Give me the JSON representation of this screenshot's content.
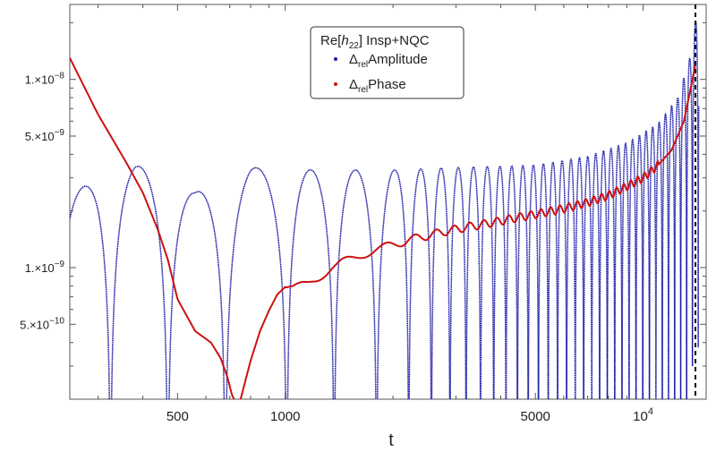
{
  "chart_data": {
    "type": "line",
    "title": "",
    "xlabel": "t",
    "ylabel": "",
    "x_scale": "log",
    "y_scale": "log",
    "xlim": [
      250,
      15000
    ],
    "ylim": [
      2e-10,
      2.5e-08
    ],
    "x_ticks": [
      {
        "value": 500,
        "label": "500"
      },
      {
        "value": 1000,
        "label": "1000"
      },
      {
        "value": 5000,
        "label": "5000"
      },
      {
        "value": 10000,
        "label": "10",
        "exp": "4"
      }
    ],
    "y_ticks": [
      {
        "value": 1e-08,
        "label": "1.×10",
        "exp": "−8"
      },
      {
        "value": 5e-09,
        "label": "5.×10",
        "exp": "−9"
      },
      {
        "value": 1e-09,
        "label": "1.×10",
        "exp": "−9"
      },
      {
        "value": 5e-10,
        "label": "5.×10",
        "exp": "−10"
      }
    ],
    "vline": {
      "x": 14000,
      "style": "dashed",
      "color": "#000000"
    },
    "legend": {
      "placement": "top-center",
      "title": "Re[h22] Insp+NQC",
      "title_parts": {
        "pre": "Re[",
        "italic": "h",
        "sub": "22",
        "post": "]  Insp+NQC"
      }
    },
    "series": [
      {
        "name": "Δrel Amplitude",
        "legend_sym": "Δ",
        "legend_sub": "rel",
        "legend_rest": "Amplitude",
        "color": "#1a1aa8",
        "style": "oscillating-envelope",
        "envelope_x": [
          250,
          300,
          340,
          380,
          440,
          560,
          800,
          1200,
          2000,
          3000,
          5000,
          7000,
          9000,
          11000,
          12500,
          13500,
          14000,
          14200
        ],
        "envelope_y": [
          2.3e-09,
          3.2e-09,
          3.4e-09,
          3.5e-09,
          3.2e-09,
          2.5e-09,
          3.4e-09,
          3.3e-09,
          3.3e-09,
          3.4e-09,
          3.5e-09,
          3.9e-09,
          4.6e-09,
          5.8e-09,
          8e-09,
          1.3e-08,
          2e-08,
          2.6e-08
        ],
        "zeros_x": [
          470,
          680,
          1010,
          1370,
          1800
        ]
      },
      {
        "name": "Δrel Phase",
        "legend_sym": "Δ",
        "legend_sub": "rel",
        "legend_rest": "Phase",
        "color": "#cc1111",
        "style": "line",
        "x": [
          250,
          300,
          360,
          400,
          440,
          470,
          500,
          560,
          620,
          660,
          690,
          710,
          740,
          760,
          800,
          850,
          900,
          950,
          1000,
          1050,
          1150,
          1250,
          1350,
          1450,
          1550,
          1650,
          1800,
          2000,
          2200,
          2500,
          2800,
          3200,
          3700,
          4300,
          5000,
          6000,
          7000,
          8000,
          9000,
          10000,
          11000,
          12000,
          13000,
          13500,
          14000
        ],
        "y": [
          1.3e-08,
          6.5e-09,
          3.6e-09,
          2.5e-09,
          1.6e-09,
          1.1e-09,
          6.8e-10,
          4.6e-10,
          4e-10,
          3.3e-10,
          2.6e-10,
          2.1e-10,
          1.8e-10,
          2.2e-10,
          3.2e-10,
          4.6e-10,
          5.9e-10,
          7.2e-10,
          7.9e-10,
          7.7e-10,
          8.2e-10,
          9e-10,
          1e-09,
          1.07e-09,
          1.12e-09,
          1.18e-09,
          1.25e-09,
          1.32e-09,
          1.4e-09,
          1.48e-09,
          1.56e-09,
          1.64e-09,
          1.72e-09,
          1.82e-09,
          1.92e-09,
          2.06e-09,
          2.22e-09,
          2.42e-09,
          2.7e-09,
          3e-09,
          3.5e-09,
          4.2e-09,
          6e-09,
          8.5e-09,
          1.2e-08
        ]
      }
    ]
  }
}
